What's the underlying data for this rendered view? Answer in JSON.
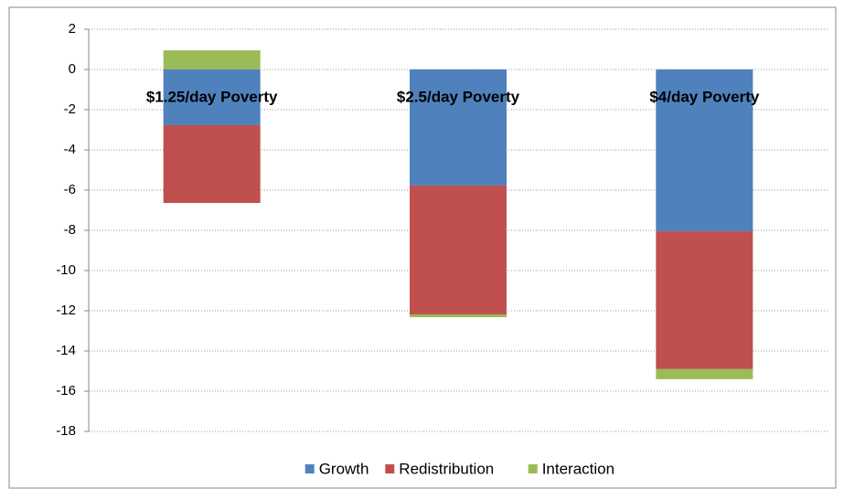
{
  "chart_data": {
    "type": "stacked_bar",
    "categories": [
      "$1.25/day Poverty",
      "$2.5/day Poverty",
      "$4/day Poverty"
    ],
    "series": [
      {
        "name": "Growth",
        "color": "#4f81bd",
        "values": [
          -2.77,
          -5.77,
          -8.05
        ]
      },
      {
        "name": "Redistribution",
        "color": "#c0504d",
        "values": [
          -3.87,
          -6.41,
          -6.85
        ]
      },
      {
        "name": "Interaction",
        "color": "#9bbb59",
        "values": [
          0.95,
          -0.14,
          -0.5
        ]
      }
    ],
    "ylim": [
      -18,
      2
    ],
    "yticks": [
      -18,
      -16,
      -14,
      -12,
      -10,
      -8,
      -6,
      -4,
      -2,
      0,
      2
    ],
    "grid": true,
    "legend": "bottom"
  }
}
